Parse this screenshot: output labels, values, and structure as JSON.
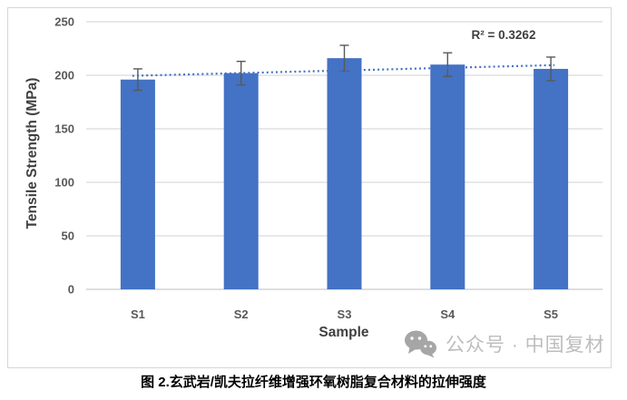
{
  "figure": {
    "caption": "图 2.玄武岩/凯夫拉纤维增强环氧树脂复合材料的拉伸强度"
  },
  "watermark": {
    "icon": "wechat-icon",
    "text": "公众号 · 中国复材"
  },
  "chart_data": {
    "type": "bar",
    "title": "",
    "xlabel": "Sample",
    "ylabel": "Tensile Strength (MPa)",
    "categories": [
      "S1",
      "S2",
      "S3",
      "S4",
      "S5"
    ],
    "values": [
      196,
      202,
      216,
      210,
      206
    ],
    "error_bars": [
      10,
      11,
      12,
      11,
      11
    ],
    "ylim": [
      0,
      250
    ],
    "yticks": [
      0,
      50,
      100,
      150,
      200,
      250
    ],
    "grid": true,
    "legend": "none",
    "annotation": "R² = 0.3262",
    "trendline": {
      "style": "dotted",
      "r_squared": 0.3262,
      "start_value": 199.5,
      "end_value": 209.5
    },
    "colors": {
      "bar": "#4472C4",
      "trendline": "#4472C4",
      "error_bar": "#595959",
      "gridline": "#D9D9D9",
      "axis_line": "#C9C9C9",
      "tick_text": "#595959",
      "axis_title_text": "#404040",
      "annotation_text": "#3F3F3F",
      "watermark_icon": "#A6A6A6",
      "watermark_text": "#BDBDBD",
      "caption_text": "#000000"
    }
  }
}
